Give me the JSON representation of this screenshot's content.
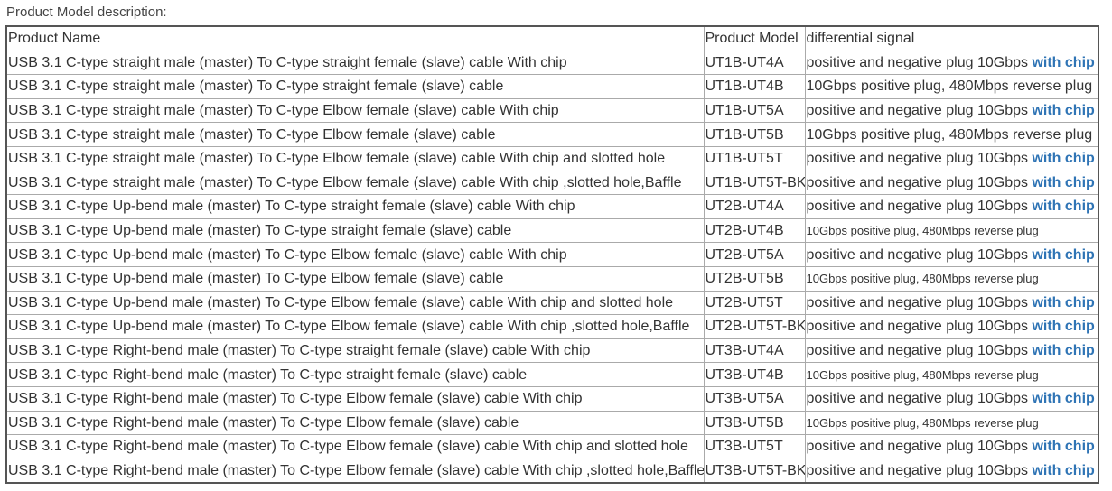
{
  "caption": "Product Model description:",
  "headers": [
    "Product Name",
    "Product Model",
    "differential signal"
  ],
  "accent_color": "#2f74b5",
  "rows": [
    {
      "name": "USB 3.1 C-type straight male (master) To C-type straight female (slave) cable With chip",
      "model": "UT1B-UT4A",
      "signal": "positive and negative plug 10Gbps ",
      "chip": "with chip",
      "small": false
    },
    {
      "name": "USB 3.1 C-type straight male (master) To C-type straight female (slave) cable",
      "model": "UT1B-UT4B",
      "signal": "10Gbps positive plug, 480Mbps reverse plug",
      "chip": "",
      "small": false
    },
    {
      "name": "USB 3.1 C-type straight male (master) To C-type Elbow female (slave) cable With chip",
      "model": "UT1B-UT5A",
      "signal": "positive and negative plug 10Gbps ",
      "chip": "with chip",
      "small": false
    },
    {
      "name": "USB 3.1 C-type straight male (master) To C-type Elbow female (slave) cable",
      "model": "UT1B-UT5B",
      "signal": "10Gbps positive plug, 480Mbps reverse plug",
      "chip": "",
      "small": false
    },
    {
      "name": "USB 3.1 C-type straight male (master) To C-type Elbow female (slave) cable With chip and slotted hole",
      "model": "UT1B-UT5T",
      "signal": "positive and negative plug 10Gbps ",
      "chip": "with chip",
      "small": false
    },
    {
      "name": "USB 3.1 C-type straight male (master) To C-type Elbow female (slave) cable With chip ,slotted hole,Baffle",
      "model": "UT1B-UT5T-BK",
      "signal": "positive and negative plug 10Gbps ",
      "chip": "with chip",
      "small": false
    },
    {
      "name": "USB 3.1 C-type Up-bend male (master) To C-type straight female (slave) cable With chip",
      "model": "UT2B-UT4A",
      "signal": "positive and negative plug 10Gbps ",
      "chip": "with chip",
      "small": false
    },
    {
      "name": "USB 3.1 C-type Up-bend male (master) To C-type straight female (slave) cable",
      "model": "UT2B-UT4B",
      "signal": "10Gbps positive plug, 480Mbps reverse plug",
      "chip": "",
      "small": true
    },
    {
      "name": "USB 3.1 C-type Up-bend male (master) To C-type Elbow female (slave) cable With chip",
      "model": "UT2B-UT5A",
      "signal": "positive and negative plug 10Gbps ",
      "chip": "with chip",
      "small": false
    },
    {
      "name": "USB 3.1 C-type Up-bend male (master) To C-type Elbow female (slave) cable",
      "model": "UT2B-UT5B",
      "signal": "10Gbps positive plug, 480Mbps reverse plug",
      "chip": "",
      "small": true
    },
    {
      "name": "USB 3.1 C-type Up-bend male (master) To C-type Elbow female (slave) cable With chip and slotted hole",
      "model": "UT2B-UT5T",
      "signal": "positive and negative plug 10Gbps ",
      "chip": "with chip",
      "small": false
    },
    {
      "name": "USB 3.1 C-type Up-bend male (master) To C-type Elbow female (slave) cable With chip ,slotted hole,Baffle",
      "model": "UT2B-UT5T-BK",
      "signal": "positive and negative plug 10Gbps ",
      "chip": "with chip",
      "small": false
    },
    {
      "name": "USB 3.1 C-type Right-bend male (master) To C-type straight female (slave) cable With chip",
      "model": "UT3B-UT4A",
      "signal": "positive and negative plug 10Gbps ",
      "chip": "with chip",
      "small": false
    },
    {
      "name": "USB 3.1 C-type Right-bend male (master) To C-type straight female (slave) cable",
      "model": "UT3B-UT4B",
      "signal": "10Gbps positive plug, 480Mbps reverse plug",
      "chip": "",
      "small": true
    },
    {
      "name": "USB 3.1 C-type Right-bend male (master) To C-type Elbow female (slave) cable With chip",
      "model": "UT3B-UT5A",
      "signal": "positive and negative plug 10Gbps ",
      "chip": "with chip",
      "small": false
    },
    {
      "name": "USB 3.1 C-type Right-bend male (master) To C-type Elbow female (slave) cable",
      "model": "UT3B-UT5B",
      "signal": "10Gbps positive plug, 480Mbps reverse plug",
      "chip": "",
      "small": true
    },
    {
      "name": "USB 3.1 C-type Right-bend male (master) To C-type Elbow female (slave) cable With chip and slotted hole",
      "model": "UT3B-UT5T",
      "signal": "positive and negative plug 10Gbps ",
      "chip": "with chip",
      "small": false
    },
    {
      "name": "USB 3.1 C-type Right-bend male (master) To C-type Elbow female (slave) cable With chip ,slotted hole,Baffle",
      "model": "UT3B-UT5T-BK",
      "signal": "positive and negative plug 10Gbps ",
      "chip": "with chip",
      "small": false
    }
  ]
}
